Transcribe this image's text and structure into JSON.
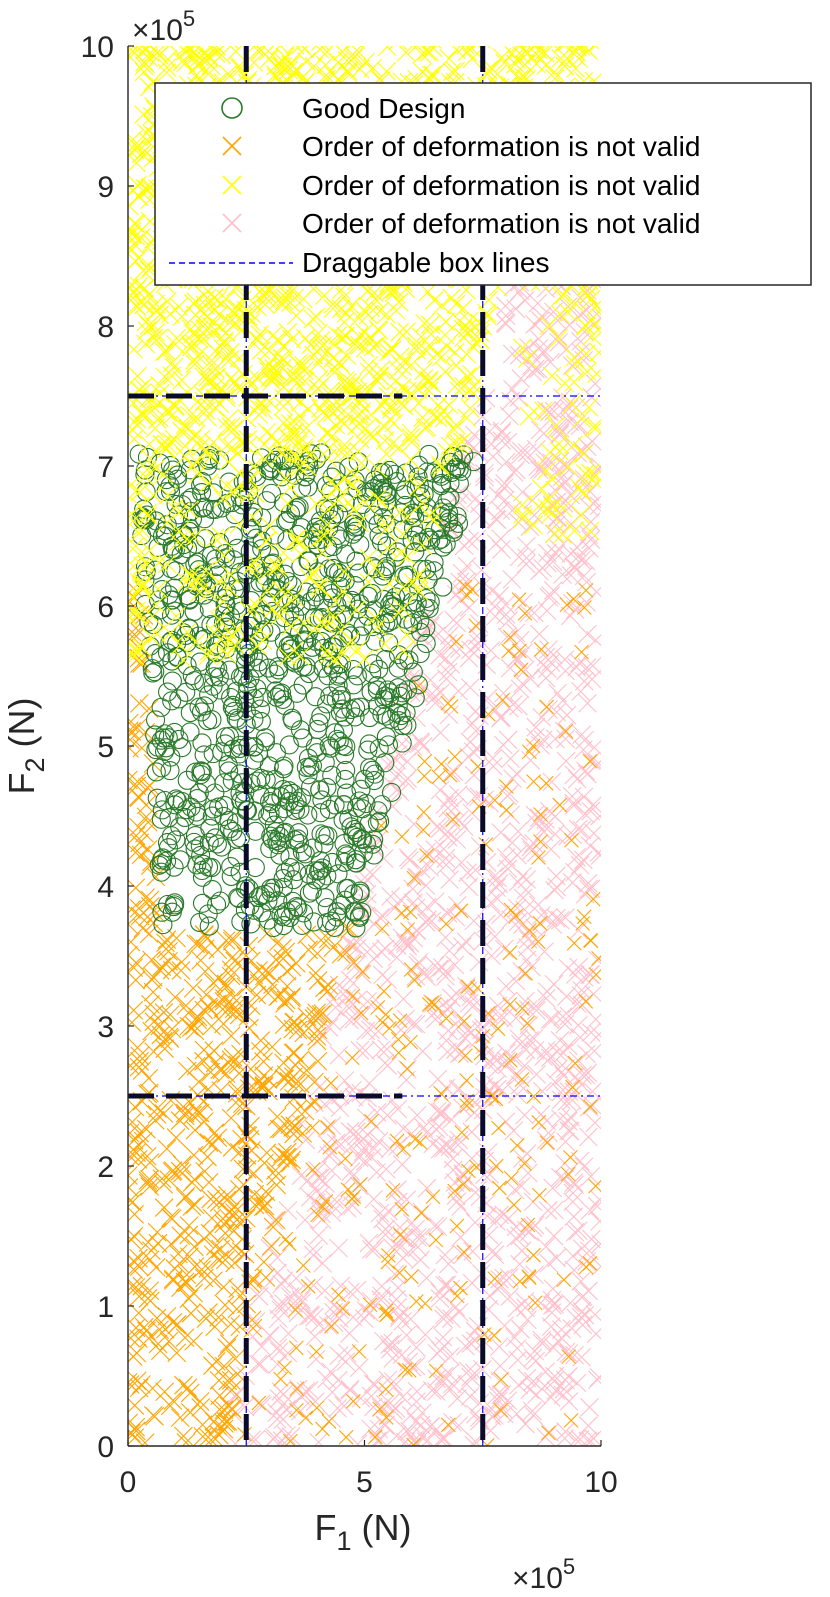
{
  "chart_data": {
    "type": "scatter",
    "xlabel_main": "F",
    "xlabel_sub": "1",
    "xlabel_unit": " (N)",
    "ylabel_main": "F",
    "ylabel_sub": "2",
    "ylabel_unit": " (N)",
    "xlim": [
      0,
      1000000
    ],
    "ylim": [
      0,
      1000000
    ],
    "x_ticks": [
      0,
      500000,
      1000000
    ],
    "x_tick_labels": [
      "0",
      "5",
      "10"
    ],
    "y_ticks": [
      0,
      100000,
      200000,
      300000,
      400000,
      500000,
      600000,
      700000,
      800000,
      900000,
      1000000
    ],
    "y_tick_labels": [
      "0",
      "1",
      "2",
      "3",
      "4",
      "5",
      "6",
      "7",
      "8",
      "9",
      "10"
    ],
    "x_multiplier_base": "×10",
    "x_multiplier_exp": "5",
    "y_multiplier_base": "×10",
    "y_multiplier_exp": "5",
    "grid": false,
    "legend_placement": "top-right",
    "legend": [
      {
        "label": "Good Design",
        "marker": "circle",
        "color": "#2a7a2a"
      },
      {
        "label": "Order of deformation is not valid",
        "marker": "x",
        "color": "#ffa500"
      },
      {
        "label": "Order of deformation is not valid",
        "marker": "x",
        "color": "#ffff00"
      },
      {
        "label": "Order of deformation is not valid",
        "marker": "x",
        "color": "#ffc0cb"
      },
      {
        "label": "Draggable box lines",
        "marker": "dashed-line",
        "color": "#0000ff"
      }
    ],
    "box_lines": {
      "vertical_x": [
        250000,
        750000
      ],
      "horizontal_y": [
        250000,
        750000
      ]
    },
    "series": [
      {
        "marker": "x",
        "color": "#ffa500",
        "region": "F2 below 0.60e6 on the left side and upper-left of the diagonal boundary; scattered sparsely inside the pink region",
        "x_range": [
          0,
          1000000
        ],
        "y_range": [
          0,
          600000
        ]
      },
      {
        "marker": "x",
        "color": "#ffff00",
        "region": "F2 above ~0.58e6, left and top of the pink diagonal boundary",
        "x_range": [
          0,
          1000000
        ],
        "y_range": [
          580000,
          1000000
        ]
      },
      {
        "marker": "x",
        "color": "#ffc0cb",
        "region": "lower-right triangle below the diagonal boundary running from (0.2e6, 0) to (0.7e6, 0.68e6), and F1 > 0.8e6",
        "x_range": [
          100000,
          1000000
        ],
        "y_range": [
          0,
          850000
        ]
      },
      {
        "marker": "circle",
        "color": "#2a7a2a",
        "region": "wedge between orange and pink, F1 about 0.05e6 to 0.73e6, F2 about 0.37e6 to 0.71e6",
        "x_range": [
          0,
          730000
        ],
        "y_range": [
          370000,
          710000
        ]
      }
    ]
  },
  "colors": {
    "good": "#2a7a2a",
    "orange": "#ffa500",
    "yellow": "#ffff00",
    "pink": "#ffc0cb",
    "box_heavy": "#0a0a2a",
    "box_thin": "#0000ff",
    "axis": "#262626"
  }
}
